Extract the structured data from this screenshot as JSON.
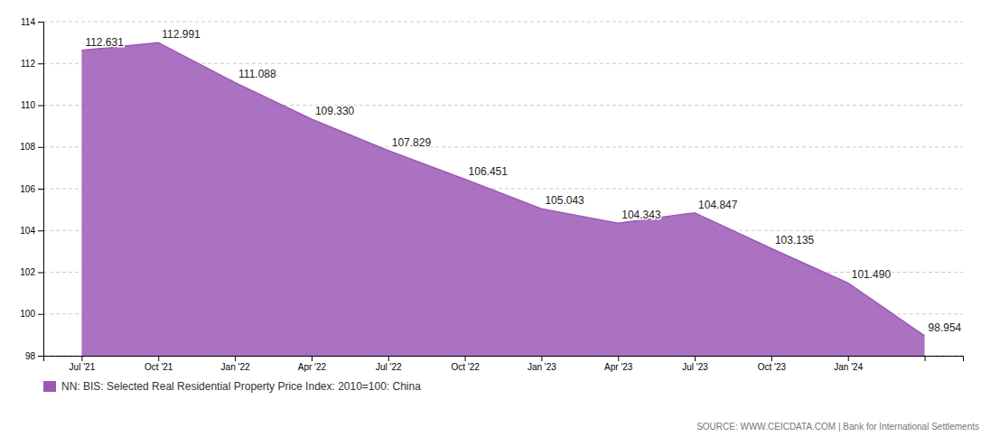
{
  "chart_data": {
    "type": "area",
    "categories": [
      "Jul '21",
      "Oct '21",
      "Jan '22",
      "Apr '22",
      "Jul '22",
      "Oct '22",
      "Jan '23",
      "Apr '23",
      "Jul '23",
      "Oct '23",
      "Jan '24",
      null
    ],
    "series": [
      {
        "name": "NN: BIS: Selected Real Residential Property Price Index: 2010=100: China",
        "color": "#9B59B6",
        "values": [
          112.631,
          112.991,
          111.088,
          109.33,
          107.829,
          106.451,
          105.043,
          104.343,
          104.847,
          103.135,
          101.49,
          98.954
        ],
        "value_labels": [
          "112.631",
          "112.991",
          "111.088",
          "109.330",
          "107.829",
          "106.451",
          "105.043",
          "104.343",
          "104.847",
          "103.135",
          "101.490",
          "98.954"
        ]
      }
    ],
    "ylim": [
      98,
      114
    ],
    "yticks": [
      98,
      100,
      102,
      104,
      106,
      108,
      110,
      112,
      114
    ],
    "grid": true,
    "legend": "bottom-left",
    "data_labels": true,
    "source": "SOURCE: WWW.CEICDATA.COM | Bank for International Settlements"
  }
}
